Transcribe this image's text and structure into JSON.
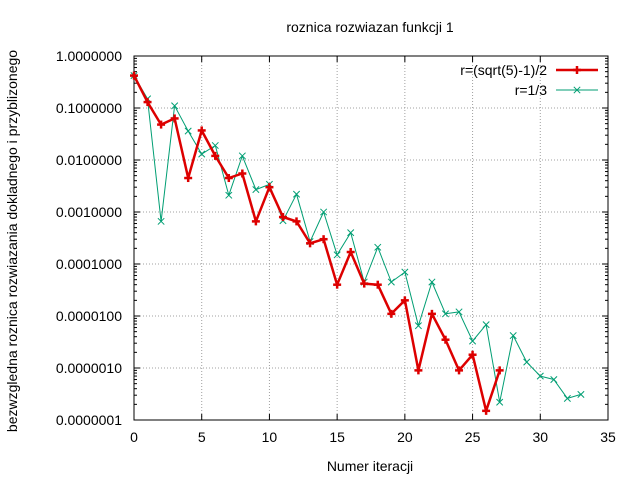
{
  "chart_data": {
    "type": "line",
    "title": "roznica rozwiazan funkcji 1",
    "xlabel": "Numer iteracji",
    "ylabel": "bezwzgledna roznica rozwiazania dokladnego i przyblizonego",
    "xlim": [
      0,
      35
    ],
    "ylim": [
      1e-07,
      1
    ],
    "yscale": "log",
    "grid": true,
    "legend_position": "top-right",
    "x_ticks": [
      "0",
      "5",
      "10",
      "15",
      "20",
      "25",
      "30",
      "35"
    ],
    "y_ticks": [
      "0.0000001",
      "0.0000010",
      "0.0000100",
      "0.0001000",
      "0.0010000",
      "0.0100000",
      "0.1000000",
      "1.0000000"
    ],
    "series": [
      {
        "name": "r=(sqrt(5)-1)/2",
        "color": "#dd0000",
        "marker": "plus",
        "x": [
          0,
          1,
          2,
          3,
          4,
          5,
          6,
          7,
          8,
          9,
          10,
          11,
          12,
          13,
          14,
          15,
          16,
          17,
          18,
          19,
          20,
          21,
          22,
          23,
          24,
          25,
          26,
          27
        ],
        "y": [
          0.42,
          0.13,
          0.048,
          0.063,
          0.0045,
          0.037,
          0.012,
          0.0045,
          0.0055,
          0.00066,
          0.003,
          0.0008,
          0.00066,
          0.00025,
          0.0003,
          4e-05,
          0.00017,
          4.2e-05,
          4e-05,
          1.1e-05,
          2e-05,
          9e-07,
          1.1e-05,
          3.5e-06,
          9e-07,
          1.8e-06,
          1.5e-07,
          9e-07
        ]
      },
      {
        "name": "r=1/3",
        "color": "#009e73",
        "marker": "cross",
        "x": [
          0,
          1,
          2,
          3,
          4,
          5,
          6,
          7,
          8,
          9,
          10,
          11,
          12,
          13,
          14,
          15,
          16,
          17,
          18,
          19,
          20,
          21,
          22,
          23,
          24,
          25,
          26,
          27,
          28,
          29,
          30,
          31,
          32,
          33
        ],
        "y": [
          0.42,
          0.15,
          0.00066,
          0.11,
          0.036,
          0.013,
          0.019,
          0.0021,
          0.012,
          0.0027,
          0.0034,
          0.00068,
          0.0022,
          0.00027,
          0.001,
          0.00015,
          0.0004,
          4.5e-05,
          0.00021,
          4.5e-05,
          7e-05,
          6.5e-06,
          4.5e-05,
          1.1e-05,
          1.2e-05,
          3.3e-06,
          6.8e-06,
          2.2e-07,
          4.2e-06,
          1.3e-06,
          7e-07,
          6e-07,
          2.6e-07,
          3.1e-07
        ]
      }
    ]
  }
}
